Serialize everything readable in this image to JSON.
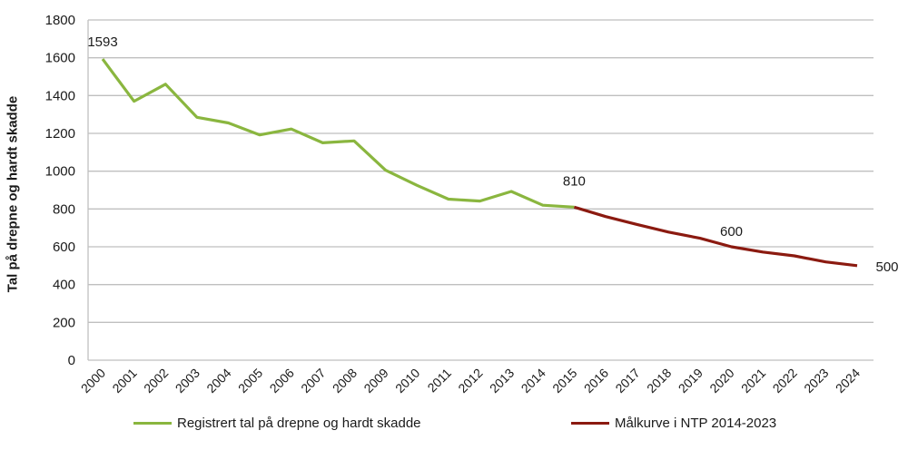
{
  "chart_data": {
    "type": "line",
    "title": "",
    "xlabel": "",
    "ylabel": "Tal på drepne og hardt skadde",
    "ylim": [
      0,
      1800
    ],
    "yticks": [
      0,
      200,
      400,
      600,
      800,
      1000,
      1200,
      1400,
      1600,
      1800
    ],
    "grid": true,
    "legend_position": "bottom",
    "categories": [
      "2000",
      "2001",
      "2002",
      "2003",
      "2004",
      "2005",
      "2006",
      "2007",
      "2008",
      "2009",
      "2010",
      "2011",
      "2012",
      "2013",
      "2014",
      "2015",
      "2016",
      "2017",
      "2018",
      "2019",
      "2020",
      "2021",
      "2022",
      "2023",
      "2024"
    ],
    "series": [
      {
        "name": "Registrert tal på drepne og hardt skadde",
        "color": "#8ab63f",
        "values": [
          1593,
          1370,
          1460,
          1285,
          1255,
          1192,
          1223,
          1150,
          1160,
          1005,
          925,
          852,
          842,
          893,
          820,
          810,
          null,
          null,
          null,
          null,
          null,
          null,
          null,
          null,
          null
        ]
      },
      {
        "name": "Målkurve i NTP 2014-2023",
        "color": "#8b1a10",
        "values": [
          null,
          null,
          null,
          null,
          null,
          null,
          null,
          null,
          null,
          null,
          null,
          null,
          null,
          null,
          null,
          810,
          760,
          718,
          678,
          645,
          600,
          572,
          552,
          520,
          500
        ]
      }
    ],
    "annotations": [
      {
        "text": "1593",
        "x": "2000",
        "y": 1593
      },
      {
        "text": "810",
        "x": "2015",
        "y": 810
      },
      {
        "text": "600",
        "x": "2020",
        "y": 600
      },
      {
        "text": "500",
        "x": "2024",
        "y": 500
      }
    ]
  }
}
